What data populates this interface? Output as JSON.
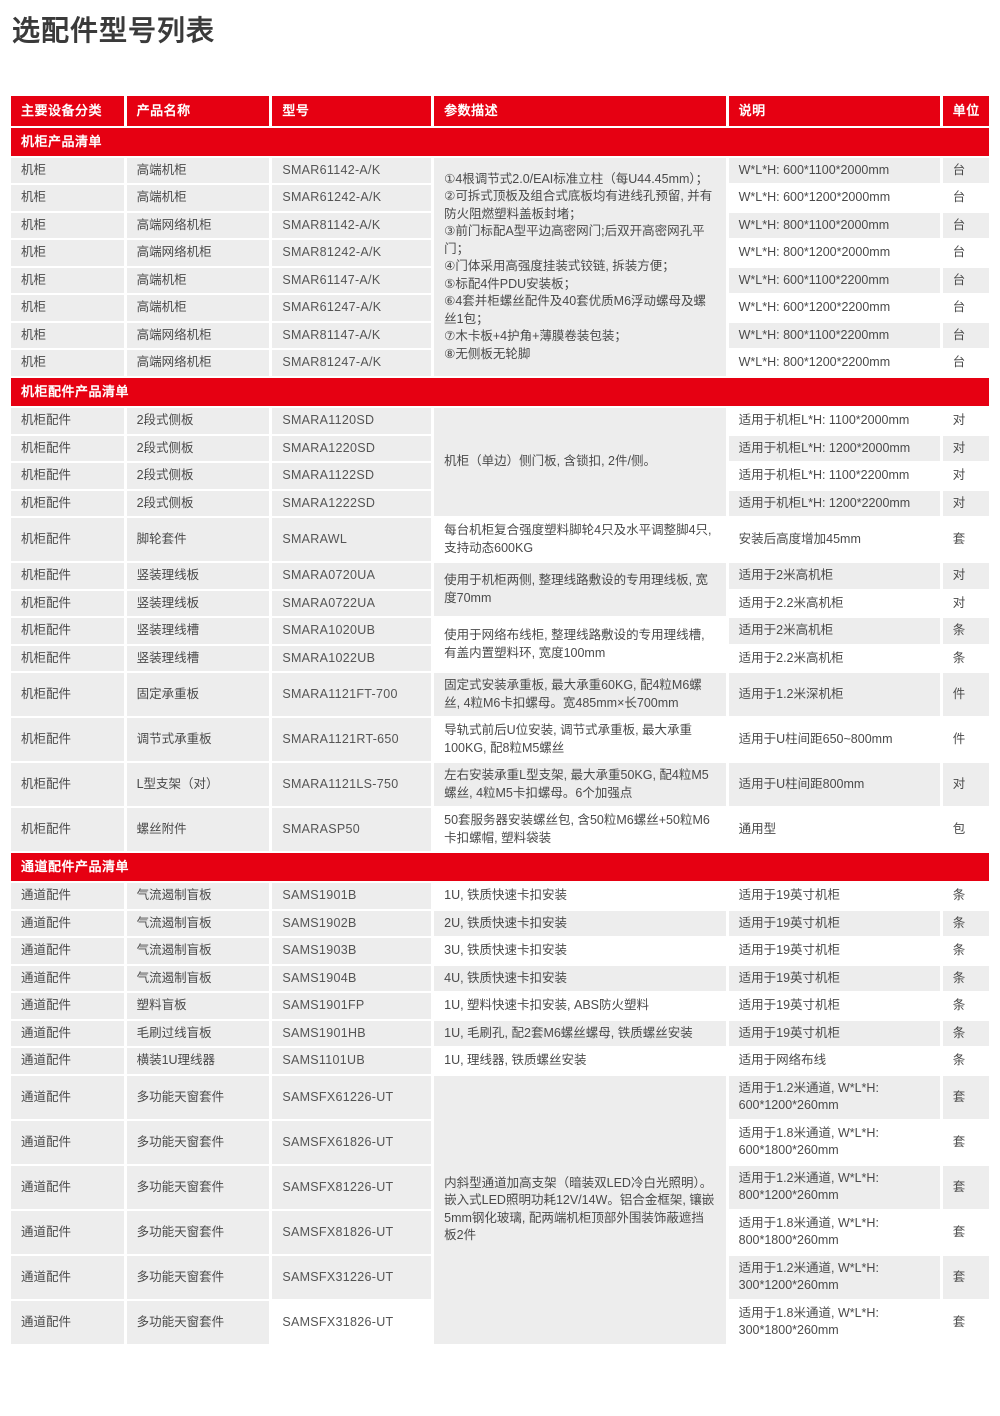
{
  "page_title": "选配件型号列表",
  "colors": {
    "header_red": "#e60012",
    "cell_gray": "#ededed",
    "text_gray": "#4a4a4a"
  },
  "table": {
    "columns": [
      "主要设备分类",
      "产品名称",
      "型号",
      "参数描述",
      "说明",
      "单位"
    ],
    "sections": [
      {
        "title": "机柜产品清单",
        "groups": [
          {
            "param_shade": "g",
            "param_lines": [
              "①4根调节式2.0/EAI标准立柱（每U44.45mm）；",
              "②可拆式顶板及组合式底板均有进线孔预留, 并有防火阻燃塑料盖板封堵；",
              "③前门标配A型平边高密网门;后双开高密网孔平门；",
              "④门体采用高强度挂装式铰链, 拆装方便；",
              "⑤标配4件PDU安装板；",
              "⑥4套并柜螺丝配件及40套优质M6浮动螺母及螺丝1包；",
              "⑦木卡板+4护角+薄膜卷装包装；",
              "⑧无侧板无轮脚"
            ],
            "rows": [
              {
                "category": "机柜",
                "name": "高端机柜",
                "model": "SMAR61142-A/K",
                "desc": "W*L*H: 600*1100*2000mm",
                "unit": "台",
                "shade": "g"
              },
              {
                "category": "机柜",
                "name": "高端机柜",
                "model": "SMAR61242-A/K",
                "desc": "W*L*H: 600*1200*2000mm",
                "unit": "台",
                "shade": "w"
              },
              {
                "category": "机柜",
                "name": "高端网络机柜",
                "model": "SMAR81142-A/K",
                "desc": "W*L*H: 800*1100*2000mm",
                "unit": "台",
                "shade": "g"
              },
              {
                "category": "机柜",
                "name": "高端网络机柜",
                "model": "SMAR81242-A/K",
                "desc": "W*L*H: 800*1200*2000mm",
                "unit": "台",
                "shade": "w"
              },
              {
                "category": "机柜",
                "name": "高端机柜",
                "model": "SMAR61147-A/K",
                "desc": "W*L*H: 600*1100*2200mm",
                "unit": "台",
                "shade": "g"
              },
              {
                "category": "机柜",
                "name": "高端机柜",
                "model": "SMAR61247-A/K",
                "desc": "W*L*H: 600*1200*2200mm",
                "unit": "台",
                "shade": "w"
              },
              {
                "category": "机柜",
                "name": "高端网络机柜",
                "model": "SMAR81147-A/K",
                "desc": "W*L*H: 800*1100*2200mm",
                "unit": "台",
                "shade": "g"
              },
              {
                "category": "机柜",
                "name": "高端网络机柜",
                "model": "SMAR81247-A/K",
                "desc": "W*L*H: 800*1200*2200mm",
                "unit": "台",
                "shade": "w"
              }
            ]
          }
        ]
      },
      {
        "title": "机柜配件产品清单",
        "groups": [
          {
            "param": "机柜（单边）侧门板, 含锁扣, 2件/侧。",
            "param_shade": "g",
            "rows": [
              {
                "category": "机柜配件",
                "name": "2段式侧板",
                "model": "SMARA1120SD",
                "desc": "适用于机柜L*H: 1100*2000mm",
                "unit": "对",
                "shade": "w"
              },
              {
                "category": "机柜配件",
                "name": "2段式侧板",
                "model": "SMARA1220SD",
                "desc": "适用于机柜L*H: 1200*2000mm",
                "unit": "对",
                "shade": "g"
              },
              {
                "category": "机柜配件",
                "name": "2段式侧板",
                "model": "SMARA1122SD",
                "desc": "适用于机柜L*H: 1100*2200mm",
                "unit": "对",
                "shade": "w"
              },
              {
                "category": "机柜配件",
                "name": "2段式侧板",
                "model": "SMARA1222SD",
                "desc": "适用于机柜L*H: 1200*2200mm",
                "unit": "对",
                "shade": "g"
              }
            ]
          },
          {
            "param": "每台机柜复合强度塑料脚轮4只及水平调整脚4只, 支持动态600KG",
            "param_shade": "w",
            "rows": [
              {
                "category": "机柜配件",
                "name": "脚轮套件",
                "model": "SMARAWL",
                "desc": "安装后高度增加45mm",
                "unit": "套",
                "shade": "w"
              }
            ]
          },
          {
            "param": "使用于机柜两侧, 整理线路敷设的专用理线板, 宽度70mm",
            "param_shade": "g",
            "rows": [
              {
                "category": "机柜配件",
                "name": "竖装理线板",
                "model": "SMARA0720UA",
                "desc": "适用于2米高机柜",
                "unit": "对",
                "shade": "g"
              },
              {
                "category": "机柜配件",
                "name": "竖装理线板",
                "model": "SMARA0722UA",
                "desc": "适用于2.2米高机柜",
                "unit": "对",
                "shade": "w"
              }
            ]
          },
          {
            "param": "使用于网络布线柜, 整理线路敷设的专用理线槽, 有盖内置塑料环, 宽度100mm",
            "param_shade": "w",
            "rows": [
              {
                "category": "机柜配件",
                "name": "竖装理线槽",
                "model": "SMARA1020UB",
                "desc": "适用于2米高机柜",
                "unit": "条",
                "shade": "g"
              },
              {
                "category": "机柜配件",
                "name": "竖装理线槽",
                "model": "SMARA1022UB",
                "desc": "适用于2.2米高机柜",
                "unit": "条",
                "shade": "w"
              }
            ]
          },
          {
            "param": "固定式安装承重板, 最大承重60KG, 配4粒M6螺丝, 4粒M6卡扣螺母。宽485mm×长700mm",
            "param_shade": "g",
            "rows": [
              {
                "category": "机柜配件",
                "name": "固定承重板",
                "model": "SMARA1121FT-700",
                "desc": "适用于1.2米深机柜",
                "unit": "件",
                "shade": "g"
              }
            ]
          },
          {
            "param": "导轨式前后U位安装, 调节式承重板, 最大承重100KG, 配8粒M5螺丝",
            "param_shade": "w",
            "rows": [
              {
                "category": "机柜配件",
                "name": "调节式承重板",
                "model": "SMARA1121RT-650",
                "desc": "适用于U柱间距650~800mm",
                "unit": "件",
                "shade": "w"
              }
            ]
          },
          {
            "param": "左右安装承重L型支架, 最大承重50KG, 配4粒M5螺丝, 4粒M5卡扣螺母。6个加强点",
            "param_shade": "g",
            "rows": [
              {
                "category": "机柜配件",
                "name": "L型支架（对）",
                "model": "SMARA1121LS-750",
                "desc": "适用于U柱间距800mm",
                "unit": "对",
                "shade": "g"
              }
            ]
          },
          {
            "param": "50套服务器安装螺丝包, 含50粒M6螺丝+50粒M6卡扣螺帽, 塑料袋装",
            "param_shade": "w",
            "rows": [
              {
                "category": "机柜配件",
                "name": "螺丝附件",
                "model": "SMARASP50",
                "desc": "通用型",
                "unit": "包",
                "shade": "w"
              }
            ]
          }
        ]
      },
      {
        "title": "通道配件产品清单",
        "groups": [
          {
            "param": "1U, 铁质快速卡扣安装",
            "param_shade": "w",
            "rows": [
              {
                "category": "通道配件",
                "name": "气流遏制盲板",
                "model": "SAMS1901B",
                "desc": "适用于19英寸机柜",
                "unit": "条",
                "shade": "w"
              }
            ]
          },
          {
            "param": "2U, 铁质快速卡扣安装",
            "param_shade": "g",
            "rows": [
              {
                "category": "通道配件",
                "name": "气流遏制盲板",
                "model": "SAMS1902B",
                "desc": "适用于19英寸机柜",
                "unit": "条",
                "shade": "g"
              }
            ]
          },
          {
            "param": "3U, 铁质快速卡扣安装",
            "param_shade": "w",
            "rows": [
              {
                "category": "通道配件",
                "name": "气流遏制盲板",
                "model": "SAMS1903B",
                "desc": "适用于19英寸机柜",
                "unit": "条",
                "shade": "w"
              }
            ]
          },
          {
            "param": "4U, 铁质快速卡扣安装",
            "param_shade": "g",
            "rows": [
              {
                "category": "通道配件",
                "name": "气流遏制盲板",
                "model": "SAMS1904B",
                "desc": "适用于19英寸机柜",
                "unit": "条",
                "shade": "g"
              }
            ]
          },
          {
            "param": "1U, 塑料快速卡扣安装, ABS防火塑料",
            "param_shade": "w",
            "rows": [
              {
                "category": "通道配件",
                "name": "塑料盲板",
                "model": "SAMS1901FP",
                "desc": "适用于19英寸机柜",
                "unit": "条",
                "shade": "w"
              }
            ]
          },
          {
            "param": "1U, 毛刷孔, 配2套M6螺丝螺母, 铁质螺丝安装",
            "param_shade": "g",
            "rows": [
              {
                "category": "通道配件",
                "name": "毛刷过线盲板",
                "model": "SAMS1901HB",
                "desc": "适用于19英寸机柜",
                "unit": "条",
                "shade": "g"
              }
            ]
          },
          {
            "param": "1U, 理线器, 铁质螺丝安装",
            "param_shade": "w",
            "rows": [
              {
                "category": "通道配件",
                "name": "横装1U理线器",
                "model": "SAMS1101UB",
                "desc": "适用于网络布线",
                "unit": "条",
                "shade": "w"
              }
            ]
          },
          {
            "param": "内斜型通道加高支架（暗装双LED冷白光照明）。嵌入式LED照明功耗12V/14W。铝合金框架, 镶嵌5mm钢化玻璃, 配两端机柜顶部外围装饰蔽遮挡板2件",
            "param_shade": "g",
            "rows": [
              {
                "category": "通道配件",
                "name": "多功能天窗套件",
                "model": "SAMSFX61226-UT",
                "desc": "适用于1.2米通道, W*L*H: 600*1200*260mm",
                "unit": "套",
                "shade": "g"
              },
              {
                "category": "通道配件",
                "name": "多功能天窗套件",
                "model": "SAMSFX61826-UT",
                "desc": "适用于1.8米通道, W*L*H: 600*1800*260mm",
                "unit": "套",
                "shade": "w"
              },
              {
                "category": "通道配件",
                "name": "多功能天窗套件",
                "model": "SAMSFX81226-UT",
                "desc": "适用于1.2米通道, W*L*H: 800*1200*260mm",
                "unit": "套",
                "shade": "g"
              },
              {
                "category": "通道配件",
                "name": "多功能天窗套件",
                "model": "SAMSFX81826-UT",
                "desc": "适用于1.8米通道, W*L*H: 800*1800*260mm",
                "unit": "套",
                "shade": "w"
              },
              {
                "category": "通道配件",
                "name": "多功能天窗套件",
                "model": "SAMSFX31226-UT",
                "desc": "适用于1.2米通道, W*L*H: 300*1200*260mm",
                "unit": "套",
                "shade": "g"
              },
              {
                "category": "通道配件",
                "name": "多功能天窗套件",
                "model": "SAMSFX31826-UT",
                "model_shade": "w",
                "desc": "适用于1.8米通道, W*L*H: 300*1800*260mm",
                "unit": "套",
                "shade": "w"
              }
            ]
          }
        ]
      }
    ]
  }
}
